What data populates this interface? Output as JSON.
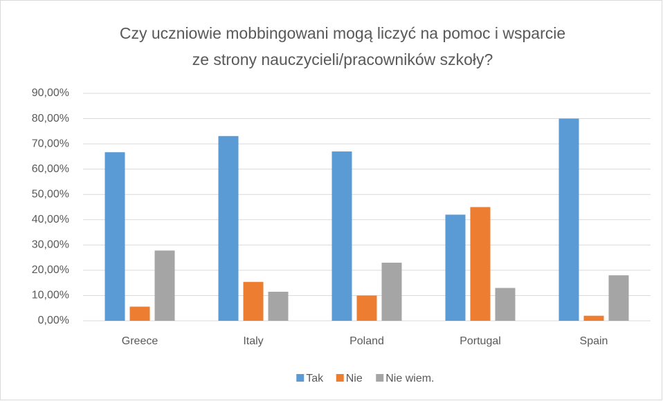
{
  "chart_data": {
    "type": "bar",
    "title": [
      "Czy uczniowie mobbingowani mogą liczyć na pomoc i wsparcie",
      "ze strony nauczycieli/pracowników szkoły?"
    ],
    "categories": [
      "Greece",
      "Italy",
      "Poland",
      "Portugal",
      "Spain"
    ],
    "series": [
      {
        "name": "Tak",
        "color": "#5b9bd5",
        "values": [
          66.7,
          73.1,
          67,
          42,
          80
        ]
      },
      {
        "name": "Nie",
        "color": "#ed7d31",
        "values": [
          5.6,
          15.4,
          10,
          45,
          2
        ]
      },
      {
        "name": "Nie wiem.",
        "color": "#a5a5a5",
        "values": [
          27.8,
          11.5,
          23,
          13,
          18
        ]
      }
    ],
    "ylim": [
      0,
      90
    ],
    "yticks": [
      {
        "value": 0,
        "label": "0,00%"
      },
      {
        "value": 10,
        "label": "10,00%"
      },
      {
        "value": 20,
        "label": "20,00%"
      },
      {
        "value": 30,
        "label": "30,00%"
      },
      {
        "value": 40,
        "label": "40,00%"
      },
      {
        "value": 50,
        "label": "50,00%"
      },
      {
        "value": 60,
        "label": "60,00%"
      },
      {
        "value": 70,
        "label": "70,00%"
      },
      {
        "value": 80,
        "label": "80,00%"
      },
      {
        "value": 90,
        "label": "90,00%"
      }
    ],
    "grid": true,
    "legend": "bottom"
  }
}
